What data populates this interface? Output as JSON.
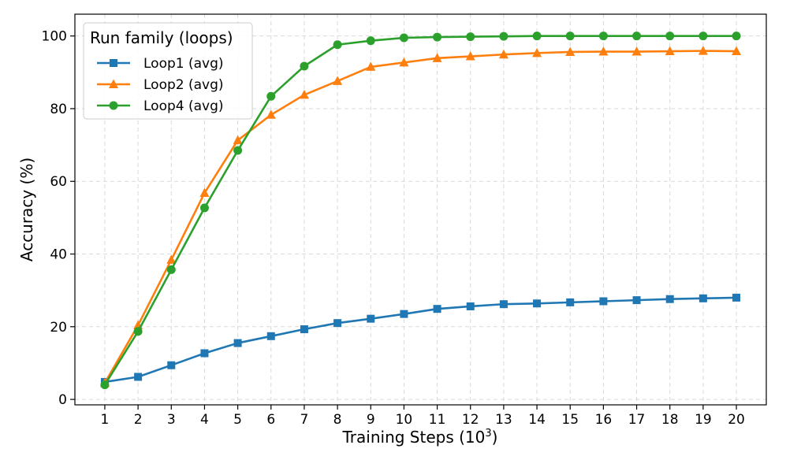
{
  "chart_data": {
    "type": "line",
    "title": "",
    "xlabel": "Training Steps (10",
    "xlabel_superscript": "3",
    "xlabel_suffix": ")",
    "ylabel": "Accuracy (%)",
    "x": [
      1,
      2,
      3,
      4,
      5,
      6,
      7,
      8,
      9,
      10,
      11,
      12,
      13,
      14,
      15,
      16,
      17,
      18,
      19,
      20
    ],
    "xlim": [
      0.1,
      20.9
    ],
    "ylim": [
      -1.5,
      106
    ],
    "yticks": [
      0,
      20,
      40,
      60,
      80,
      100
    ],
    "grid": true,
    "legend": {
      "title": "Run family (loops)",
      "position": "top-left"
    },
    "series": [
      {
        "name": "Loop1 (avg)",
        "color": "#1f77b4",
        "marker": "square",
        "values": [
          4.8,
          6.2,
          9.4,
          12.7,
          15.5,
          17.4,
          19.3,
          21.0,
          22.2,
          23.5,
          24.9,
          25.6,
          26.2,
          26.4,
          26.7,
          27.0,
          27.3,
          27.6,
          27.8,
          28.0
        ]
      },
      {
        "name": "Loop2 (avg)",
        "color": "#ff7f0e",
        "marker": "triangle",
        "values": [
          4.5,
          20.4,
          38.4,
          56.8,
          71.3,
          78.3,
          83.8,
          87.6,
          91.5,
          92.7,
          93.9,
          94.4,
          94.9,
          95.3,
          95.6,
          95.7,
          95.7,
          95.8,
          95.9,
          95.8
        ]
      },
      {
        "name": "Loop4 (avg)",
        "color": "#2ca02c",
        "marker": "circle",
        "values": [
          4.0,
          18.7,
          35.7,
          52.7,
          68.5,
          83.4,
          91.7,
          97.6,
          98.7,
          99.5,
          99.7,
          99.8,
          99.9,
          100.0,
          100.0,
          100.0,
          100.0,
          100.0,
          100.0,
          100.0
        ]
      }
    ]
  }
}
